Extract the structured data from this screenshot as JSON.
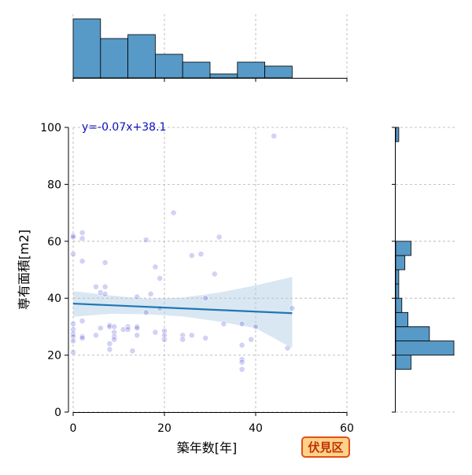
{
  "chart_data": {
    "type": "scatter",
    "xlabel": "築年数[年]",
    "ylabel": "専有面積[m2]",
    "xlim": [
      0,
      60
    ],
    "ylim": [
      0,
      100
    ],
    "x_ticks": [
      0,
      20,
      40,
      60
    ],
    "y_ticks": [
      0,
      20,
      40,
      60,
      80,
      100
    ],
    "grid": true,
    "annotation": "y=-0.07x+38.1",
    "badge": "伏見区",
    "regression": {
      "slope": -0.07,
      "intercept": 38.1,
      "x_range": [
        0,
        48
      ]
    },
    "confidence_band": {
      "x": [
        0,
        8,
        16,
        24,
        32,
        40,
        48
      ],
      "upper": [
        42.5,
        41.0,
        39.8,
        40.2,
        42.0,
        44.5,
        47.5
      ],
      "lower": [
        33.5,
        34.5,
        34.4,
        33.6,
        31.8,
        29.5,
        22.5
      ]
    },
    "points": [
      {
        "x": 0,
        "y": 62
      },
      {
        "x": 0,
        "y": 61.5
      },
      {
        "x": 0,
        "y": 55.5
      },
      {
        "x": 0,
        "y": 31
      },
      {
        "x": 0,
        "y": 29
      },
      {
        "x": 0,
        "y": 27.5
      },
      {
        "x": 0,
        "y": 26.5
      },
      {
        "x": 0,
        "y": 25
      },
      {
        "x": 0,
        "y": 21
      },
      {
        "x": 2,
        "y": 63
      },
      {
        "x": 2,
        "y": 61
      },
      {
        "x": 2,
        "y": 53
      },
      {
        "x": 2,
        "y": 32
      },
      {
        "x": 2,
        "y": 26.5
      },
      {
        "x": 2,
        "y": 26
      },
      {
        "x": 5,
        "y": 44
      },
      {
        "x": 5,
        "y": 27
      },
      {
        "x": 6,
        "y": 42
      },
      {
        "x": 6,
        "y": 29.5
      },
      {
        "x": 7,
        "y": 52.5
      },
      {
        "x": 7,
        "y": 44
      },
      {
        "x": 7,
        "y": 41.5
      },
      {
        "x": 8,
        "y": 30.5
      },
      {
        "x": 8,
        "y": 30
      },
      {
        "x": 8,
        "y": 24
      },
      {
        "x": 8,
        "y": 22
      },
      {
        "x": 9,
        "y": 30
      },
      {
        "x": 9,
        "y": 28
      },
      {
        "x": 9,
        "y": 26.5
      },
      {
        "x": 9,
        "y": 25.5
      },
      {
        "x": 11,
        "y": 29
      },
      {
        "x": 12,
        "y": 30
      },
      {
        "x": 12,
        "y": 29
      },
      {
        "x": 13,
        "y": 21.5
      },
      {
        "x": 14,
        "y": 40.5
      },
      {
        "x": 14,
        "y": 30
      },
      {
        "x": 14,
        "y": 29.5
      },
      {
        "x": 14,
        "y": 27
      },
      {
        "x": 16,
        "y": 60.5
      },
      {
        "x": 16,
        "y": 35
      },
      {
        "x": 17,
        "y": 41.5
      },
      {
        "x": 18,
        "y": 51
      },
      {
        "x": 18,
        "y": 28
      },
      {
        "x": 19,
        "y": 47
      },
      {
        "x": 19,
        "y": 36.5
      },
      {
        "x": 20,
        "y": 28.5
      },
      {
        "x": 20,
        "y": 27
      },
      {
        "x": 20,
        "y": 25.5
      },
      {
        "x": 22,
        "y": 70
      },
      {
        "x": 24,
        "y": 27
      },
      {
        "x": 24,
        "y": 25.5
      },
      {
        "x": 26,
        "y": 55
      },
      {
        "x": 26,
        "y": 27
      },
      {
        "x": 28,
        "y": 55.5
      },
      {
        "x": 29,
        "y": 40
      },
      {
        "x": 29,
        "y": 26
      },
      {
        "x": 31,
        "y": 48.5
      },
      {
        "x": 32,
        "y": 61.5
      },
      {
        "x": 33,
        "y": 31
      },
      {
        "x": 37,
        "y": 31
      },
      {
        "x": 37,
        "y": 23.5
      },
      {
        "x": 37,
        "y": 18.5
      },
      {
        "x": 37,
        "y": 17.5
      },
      {
        "x": 37,
        "y": 15
      },
      {
        "x": 39,
        "y": 25.5
      },
      {
        "x": 40,
        "y": 30
      },
      {
        "x": 44,
        "y": 97
      },
      {
        "x": 47,
        "y": 22.5
      },
      {
        "x": 48,
        "y": 36.5
      }
    ],
    "marginal_x": {
      "bins": [
        0,
        6,
        12,
        18,
        24,
        30,
        36,
        42,
        48
      ],
      "counts": [
        15,
        10,
        11,
        6,
        4,
        1,
        4,
        3
      ]
    },
    "marginal_y": {
      "bins": [
        10,
        15,
        20,
        25,
        30,
        35,
        40,
        45,
        50,
        55,
        60,
        65,
        70,
        75,
        80,
        85,
        90,
        95,
        100
      ],
      "counts": [
        0,
        5,
        19,
        11,
        4,
        2,
        1,
        1,
        3,
        5,
        0,
        0,
        0,
        0,
        0,
        0,
        0,
        1
      ]
    },
    "colors": {
      "point": "#4b4bd6",
      "regression_line": "#1f77b4",
      "band": "#aac9e4",
      "histogram_fill": "#5799c7",
      "annotation_text": "#1010c0",
      "badge_fill": "#ffd28a",
      "badge_border": "#e0501a",
      "badge_text": "#c03000"
    }
  }
}
